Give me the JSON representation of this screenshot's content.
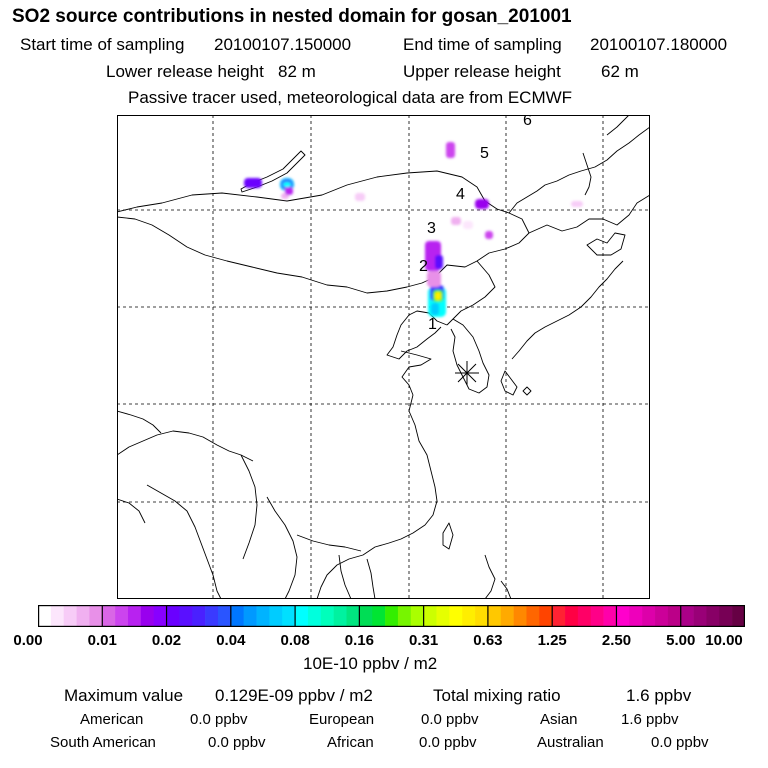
{
  "header": {
    "title": "SO2 source contributions in nested domain for gosan_201001",
    "start_label": "Start time of sampling",
    "start_value": "20100107.150000",
    "end_label": "End time of sampling",
    "end_value": "20100107.180000",
    "lower_label": "Lower release height",
    "lower_value": "82 m",
    "upper_label": "Upper release height",
    "upper_value": "62 m",
    "note": "Passive tracer used, meteorological data are from ECMWF"
  },
  "map": {
    "station_marker": "asterisk-icon",
    "trajectory_labels": [
      "1",
      "2",
      "3",
      "4",
      "5",
      "6"
    ]
  },
  "colorbar": {
    "tick_labels": [
      "0.00",
      "0.01",
      "0.02",
      "0.04",
      "0.08",
      "0.16",
      "0.31",
      "0.63",
      "1.25",
      "2.50",
      "5.00",
      "10.00"
    ],
    "unit": "10E-10 ppbv / m2",
    "colors": [
      [
        "#ffffff",
        "#fce6fc",
        "#f7ccf7",
        "#f0b0f0",
        "#e890e8"
      ],
      [
        "#d966e6",
        "#cc44ee",
        "#b822f0",
        "#9900ee",
        "#8800ff"
      ],
      [
        "#6a00ff",
        "#5a10ff",
        "#4a20ff",
        "#3a3aff",
        "#2a55ff"
      ],
      [
        "#0077ff",
        "#0099ff",
        "#00b3ff",
        "#00ccff",
        "#00e0ff"
      ],
      [
        "#00ffff",
        "#00ffdd",
        "#00ffbb",
        "#00f2a0",
        "#00e680"
      ],
      [
        "#00dd55",
        "#00e533",
        "#33ee00",
        "#77f500",
        "#aaff00"
      ],
      [
        "#ccff00",
        "#e6ff00",
        "#ffff00",
        "#ffee00",
        "#ffdd00"
      ],
      [
        "#ffc800",
        "#ffaa00",
        "#ff8800",
        "#ff6600",
        "#ff4400"
      ],
      [
        "#ff2233",
        "#ff0044",
        "#ff0066",
        "#ff0088",
        "#ff00aa"
      ],
      [
        "#ff00cc",
        "#ee00bb",
        "#dd00aa",
        "#cc0099",
        "#bb0088"
      ],
      [
        "#aa0088",
        "#990077",
        "#880066",
        "#770055",
        "#660044"
      ]
    ]
  },
  "stats": {
    "max_label": "Maximum value",
    "max_value": "0.129E-09 ppbv / m2",
    "total_label": "Total mixing ratio",
    "total_value": "1.6 ppbv",
    "american_label": "American",
    "american_value": "0.0 ppbv",
    "european_label": "European",
    "european_value": "0.0 ppbv",
    "asian_label": "Asian",
    "asian_value": "1.6 ppbv",
    "south_american_label": "South American",
    "south_american_value": "0.0 ppbv",
    "african_label": "African",
    "african_value": "0.0 ppbv",
    "australian_label": "Australian",
    "australian_value": "0.0 ppbv"
  }
}
